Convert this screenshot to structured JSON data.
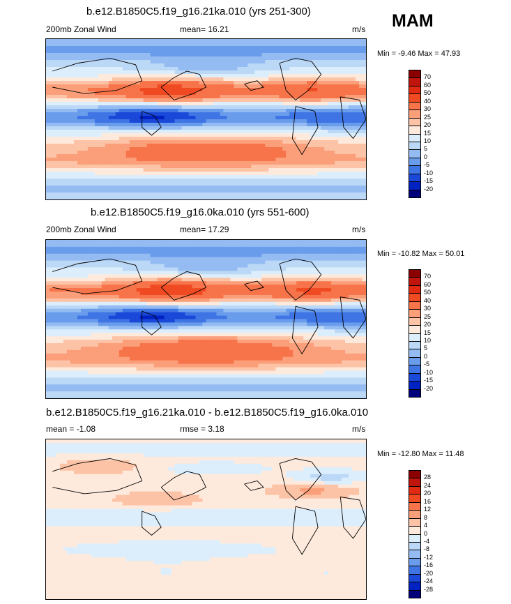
{
  "season": "MAM",
  "chart_data": [
    {
      "type": "heatmap",
      "title": "b.e12.B1850C5.f19_g16.21ka.010 (yrs 251-300)",
      "left_label": "200mb Zonal Wind",
      "center_label": "mean=  16.21",
      "units": "m/s",
      "min_max": "Min =  -9.46 Max =  47.93",
      "min": -9.46,
      "max": 47.93,
      "mean": 16.21,
      "colorbar_levels": [
        "70",
        "60",
        "50",
        "40",
        "30",
        "25",
        "20",
        "15",
        "10",
        "5",
        "0",
        "-5",
        "-10",
        "-15",
        "-20"
      ],
      "colorbar_colors": [
        "#8b0000",
        "#c0150c",
        "#e02a12",
        "#f04a22",
        "#f7744a",
        "#fb9f7a",
        "#fcc3a6",
        "#feeadc",
        "#dceefc",
        "#bcd8f7",
        "#94bcf2",
        "#6a9cec",
        "#3f74e4",
        "#1a48d8",
        "#0022c2",
        "#00007a"
      ]
    },
    {
      "type": "heatmap",
      "title": "b.e12.B1850C5.f19_g16.0ka.010 (yrs 551-600)",
      "left_label": "200mb Zonal Wind",
      "center_label": "mean=  17.29",
      "units": "m/s",
      "min_max": "Min = -10.82 Max =  50.01",
      "min": -10.82,
      "max": 50.01,
      "mean": 17.29,
      "colorbar_levels": [
        "70",
        "60",
        "50",
        "40",
        "30",
        "25",
        "20",
        "15",
        "10",
        "5",
        "0",
        "-5",
        "-10",
        "-15",
        "-20"
      ],
      "colorbar_colors": [
        "#8b0000",
        "#c0150c",
        "#e02a12",
        "#f04a22",
        "#f7744a",
        "#fb9f7a",
        "#fcc3a6",
        "#feeadc",
        "#dceefc",
        "#bcd8f7",
        "#94bcf2",
        "#6a9cec",
        "#3f74e4",
        "#1a48d8",
        "#0022c2",
        "#00007a"
      ]
    },
    {
      "type": "heatmap",
      "title": "b.e12.B1850C5.f19_g16.21ka.010 - b.e12.B1850C5.f19_g16.0ka.010",
      "left_label": "mean =  -1.08",
      "center_label": "rmse =  3.18",
      "units": "m/s",
      "min_max": "Min = -12.80 Max =  11.48",
      "min": -12.8,
      "max": 11.48,
      "mean": -1.08,
      "rmse": 3.18,
      "colorbar_levels": [
        "28",
        "24",
        "20",
        "16",
        "12",
        "8",
        "4",
        "0",
        "-4",
        "-8",
        "-12",
        "-16",
        "-20",
        "-24",
        "-28"
      ],
      "colorbar_colors": [
        "#8b0000",
        "#c0150c",
        "#e02a12",
        "#f04a22",
        "#f7744a",
        "#fb9f7a",
        "#fcc3a6",
        "#feeadc",
        "#dceefc",
        "#bcd8f7",
        "#94bcf2",
        "#6a9cec",
        "#3f74e4",
        "#1a48d8",
        "#0022c2",
        "#00007a"
      ]
    }
  ]
}
